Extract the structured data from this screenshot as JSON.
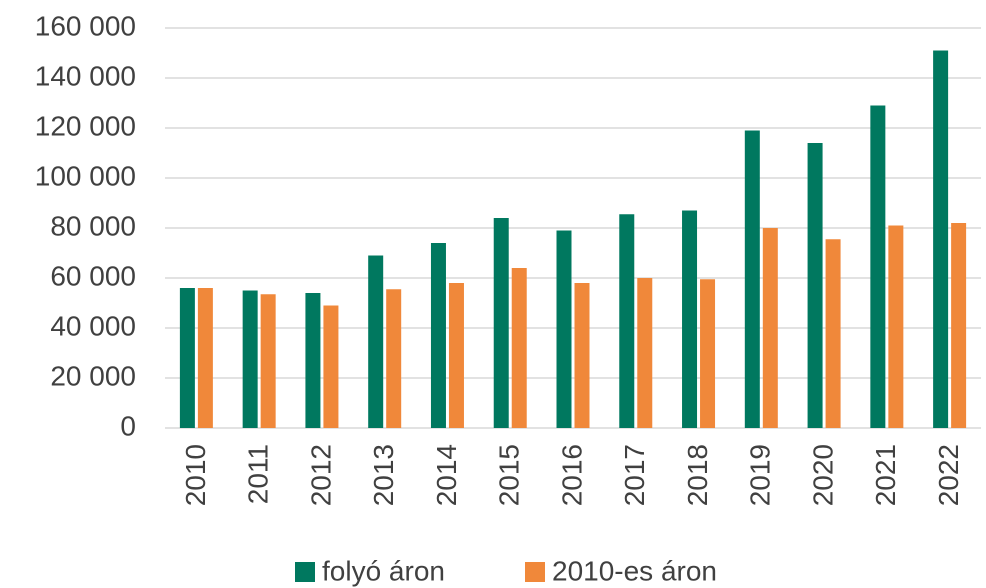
{
  "chart_data": {
    "type": "bar",
    "categories": [
      "2010",
      "2011",
      "2012",
      "2013",
      "2014",
      "2015",
      "2016",
      "2017",
      "2018",
      "2019",
      "2020",
      "2021",
      "2022"
    ],
    "series": [
      {
        "name": "folyó áron",
        "color": "#00785f",
        "values": [
          56000,
          55000,
          54000,
          69000,
          74000,
          84000,
          79000,
          85500,
          87000,
          119000,
          114000,
          129000,
          151000
        ]
      },
      {
        "name": "2010-es áron",
        "color": "#f0883a",
        "values": [
          56000,
          53500,
          49000,
          55500,
          58000,
          64000,
          58000,
          60000,
          59500,
          80000,
          75500,
          81000,
          82000
        ]
      }
    ],
    "ylim": [
      0,
      160000
    ],
    "yticks": [
      0,
      {
        "value": 20000,
        "label": "20 000"
      },
      {
        "value": 40000,
        "label": "40 000"
      },
      {
        "value": 60000,
        "label": "60 000"
      },
      {
        "value": 80000,
        "label": "80 000"
      },
      {
        "value": 100000,
        "label": "100 000"
      },
      {
        "value": 120000,
        "label": "120 000"
      },
      {
        "value": 140000,
        "label": "140 000"
      },
      {
        "value": 160000,
        "label": "160 000"
      }
    ],
    "grid": true,
    "legend": "bottom"
  }
}
